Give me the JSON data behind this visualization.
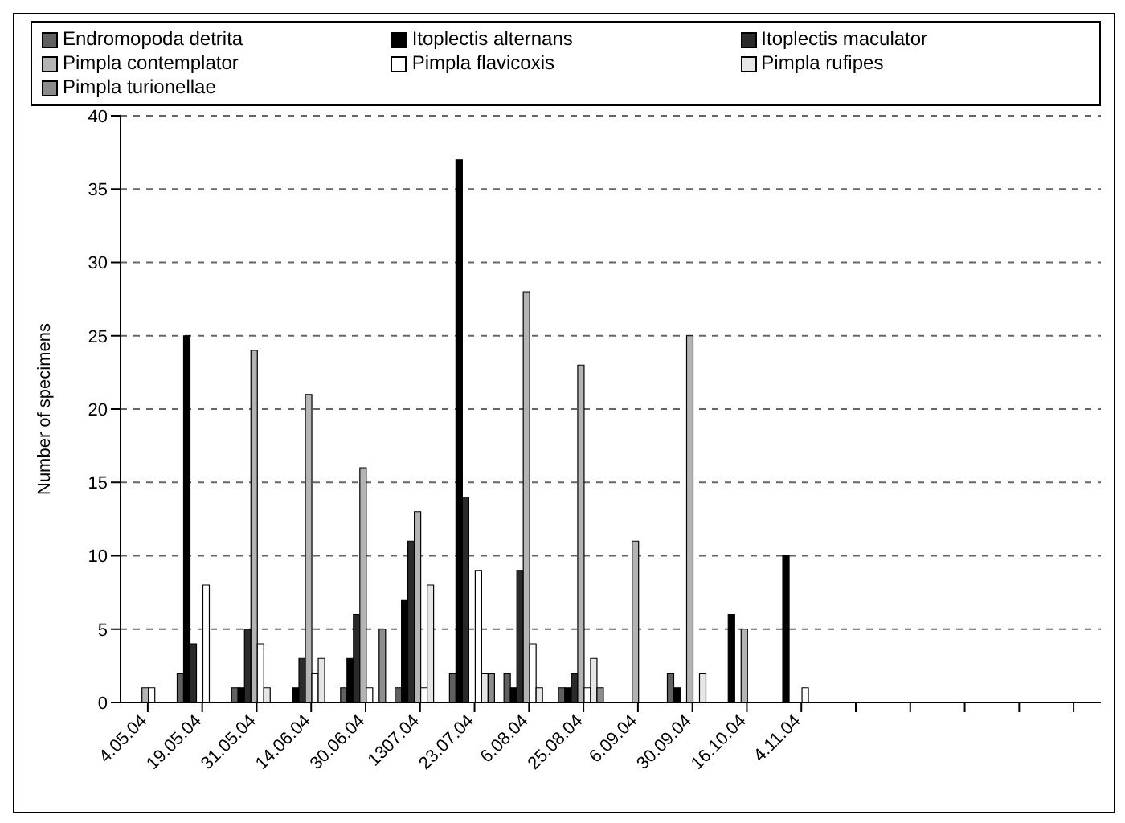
{
  "chart_data": {
    "type": "bar",
    "ylabel": "Number of specimens",
    "categories": [
      "4.05.04",
      "19.05.04",
      "31.05.04",
      "14.06.04",
      "30.06.04",
      "1307.04",
      "23.07.04",
      "6.08.04",
      "25.08.04",
      "6.09.04",
      "30.09.04",
      "16.10.04",
      "4.11.04",
      null,
      null,
      null,
      null,
      null
    ],
    "series": [
      {
        "name": "Endromopoda detrita",
        "color": "#606060",
        "values": [
          0,
          2,
          1,
          0,
          1,
          1,
          2,
          2,
          1,
          0,
          2,
          0,
          0,
          0,
          0,
          0,
          0,
          0
        ]
      },
      {
        "name": "Itoplectis alternans",
        "color": "#000000",
        "values": [
          0,
          25,
          1,
          1,
          3,
          7,
          37,
          1,
          1,
          0,
          1,
          6,
          10,
          0,
          0,
          0,
          0,
          0
        ]
      },
      {
        "name": "Itoplectis maculator",
        "color": "#2a2a2a",
        "values": [
          0,
          4,
          5,
          3,
          6,
          11,
          14,
          9,
          2,
          0,
          0,
          0,
          0,
          0,
          0,
          0,
          0,
          0
        ]
      },
      {
        "name": "Pimpla contemplator",
        "color": "#b4b4b4",
        "values": [
          1,
          0,
          24,
          21,
          16,
          13,
          0,
          28,
          23,
          11,
          25,
          5,
          0,
          0,
          0,
          0,
          0,
          0
        ]
      },
      {
        "name": "Pimpla flavicoxis",
        "color": "#ffffff",
        "values": [
          1,
          8,
          4,
          2,
          1,
          1,
          9,
          4,
          1,
          0,
          0,
          0,
          1,
          0,
          0,
          0,
          0,
          0
        ]
      },
      {
        "name": "Pimpla rufipes",
        "color": "#e6e6e6",
        "values": [
          0,
          0,
          1,
          3,
          0,
          8,
          2,
          1,
          3,
          0,
          2,
          0,
          0,
          0,
          0,
          0,
          0,
          0
        ]
      },
      {
        "name": "Pimpla turionellae",
        "color": "#8c8c8c",
        "values": [
          0,
          0,
          0,
          0,
          5,
          0,
          2,
          0,
          1,
          0,
          0,
          0,
          0,
          0,
          0,
          0,
          0,
          0
        ]
      }
    ],
    "ylim": [
      0,
      40
    ],
    "yticks": [
      0,
      5,
      10,
      15,
      20,
      25,
      30,
      35,
      40
    ],
    "grid": "y",
    "legend": "top"
  }
}
